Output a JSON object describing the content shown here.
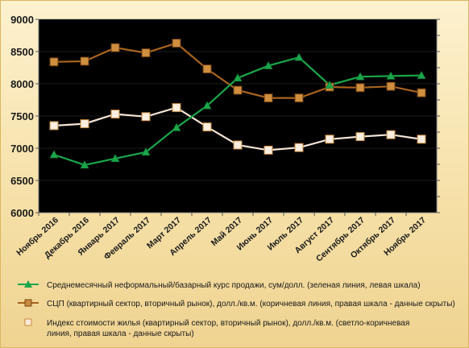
{
  "chart_data": {
    "type": "line",
    "categories": [
      "Ноябрь 2016",
      "Декабрь 2016",
      "Январь 2017",
      "Февраль 2017",
      "Март 2017",
      "Апрель 2017",
      "Май 2017",
      "Июнь 2017",
      "Июль 2017",
      "Август 2017",
      "Сентябрь 2017",
      "Октябрь 2017",
      "Ноябрь 2017"
    ],
    "ylim": [
      6000,
      9000
    ],
    "yticks": [
      "6000",
      "6500",
      "7000",
      "7500",
      "8000",
      "8500",
      "9000"
    ],
    "plot_background": "#000000",
    "series": [
      {
        "name": "Среднемесячный неформальный/базарный курс продажи,  сум/долл. (зеленая линия, левая шкала)",
        "color": "#1aa64a",
        "marker": "triangle",
        "values": [
          6900,
          6740,
          6840,
          6940,
          7320,
          7660,
          8090,
          8280,
          8410,
          7980,
          8110,
          8120,
          8130
        ]
      },
      {
        "name": "СЦП (квартирный сектор, вторичный рынок),  долл./кв.м. (коричневая линия,  правая шкала - данные скрыты)",
        "color": "#a8631f",
        "marker": "square",
        "values": [
          8340,
          8350,
          8560,
          8480,
          8630,
          8230,
          7900,
          7780,
          7780,
          7950,
          7940,
          7960,
          7860
        ]
      },
      {
        "name": "Индекс стоимости жилья (квартирный сектор, вторичный рынок),  долл./кв.м. (светло-коричневая линия,  правая шкала - данные скрыты)",
        "color": "#f6ddc6",
        "marker": "square",
        "values": [
          7350,
          7380,
          7530,
          7490,
          7630,
          7330,
          7050,
          6970,
          7010,
          7140,
          7180,
          7210,
          7140
        ]
      }
    ],
    "legend_position": "bottom"
  },
  "legend": {
    "item1": "Среднемесячный неформальный/базарный курс продажи,  сум/долл. (зеленая линия, левая шкала)",
    "item2": "СЦП (квартирный сектор, вторичный рынок),  долл./кв.м. (коричневая линия,  правая шкала - данные скрыты)",
    "item3_line1": "Индекс стоимости жилья (квартирный сектор, вторичный рынок),  долл./кв.м. (светло-коричневая",
    "item3_line2": "линия,  правая шкала - данные скрыты)"
  }
}
